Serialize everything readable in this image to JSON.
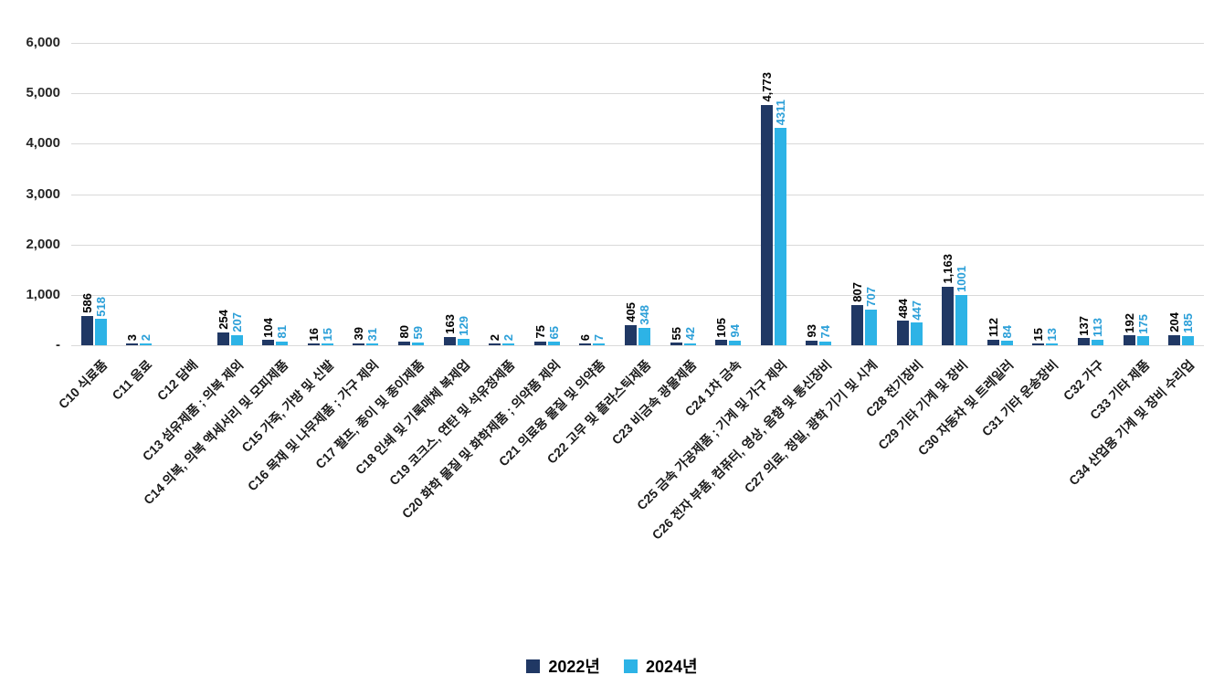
{
  "chart_data": {
    "type": "bar",
    "title": "",
    "categories": [
      "C10 식료품",
      "C11 음료",
      "C12 담배",
      "C13 섬유제품 ; 의복 제외",
      "C14 의복, 의복 액세서리 및 모피제품",
      "C15 가죽, 가방 및 신발",
      "C16 목재 및 나무제품 ; 가구 제외",
      "C17 펄프, 종이 및 종이제품",
      "C18 인쇄 및 기록매체 복제업",
      "C19 코크스, 연탄 및 석유정제품",
      "C20 화학 물질 및 화학제품 ; 의약품 제외",
      "C21 의료용 물질 및 의약품",
      "C22 고무 및 플라스틱제품",
      "C23 비금속 광물제품",
      "C24 1차 금속",
      "C25 금속 가공제품 ; 기계 및 가구 제외",
      "C26 전자 부품, 컴퓨터, 영상, 음향 및 통신장비",
      "C27 의료, 정밀, 광학 기기 및 시계",
      "C28 전기장비",
      "C29 기타 기계 및 장비",
      "C30 자동차 및 트레일러",
      "C31 기타 운송장비",
      "C32 가구",
      "C33 기타 제품",
      "C34 산업용 기계 및 장비 수리업"
    ],
    "series": [
      {
        "name": "2022년",
        "color": "#203864",
        "label_color": "#000000",
        "values": [
          586,
          3,
          null,
          254,
          104,
          16,
          39,
          80,
          163,
          2,
          75,
          6,
          405,
          55,
          105,
          4773,
          93,
          807,
          484,
          1163,
          112,
          15,
          137,
          192,
          204
        ],
        "labels": [
          "586",
          "3",
          "",
          "254",
          "104",
          "16",
          "39",
          "80",
          "163",
          "2",
          "75",
          "6",
          "405",
          "55",
          "105",
          "4,773",
          "93",
          "807",
          "484",
          "1,163",
          "112",
          "15",
          "137",
          "192",
          "204"
        ]
      },
      {
        "name": "2024년",
        "color": "#2db3e6",
        "label_color": "#2b9fd8",
        "values": [
          518,
          2,
          null,
          207,
          81,
          15,
          31,
          59,
          129,
          2,
          65,
          7,
          348,
          42,
          94,
          4311,
          74,
          707,
          447,
          1001,
          84,
          13,
          113,
          175,
          185
        ],
        "labels": [
          "518",
          "2",
          "",
          "207",
          "81",
          "15",
          "31",
          "59",
          "129",
          "2",
          "65",
          "7",
          "348",
          "42",
          "94",
          "4311",
          "74",
          "707",
          "447",
          "1001",
          "84",
          "13",
          "113",
          "175",
          "185"
        ]
      }
    ],
    "ylim": [
      0,
      6000
    ],
    "y_ticks": [
      {
        "v": 0,
        "label": "-"
      },
      {
        "v": 1000,
        "label": "1,000"
      },
      {
        "v": 2000,
        "label": "2,000"
      },
      {
        "v": 3000,
        "label": "3,000"
      },
      {
        "v": 4000,
        "label": "4,000"
      },
      {
        "v": 5000,
        "label": "5,000"
      },
      {
        "v": 6000,
        "label": "6,000"
      }
    ],
    "grid": true,
    "legend_position": "bottom",
    "value_label_orientation": "vertical",
    "x_label_rotation_deg": 45
  }
}
